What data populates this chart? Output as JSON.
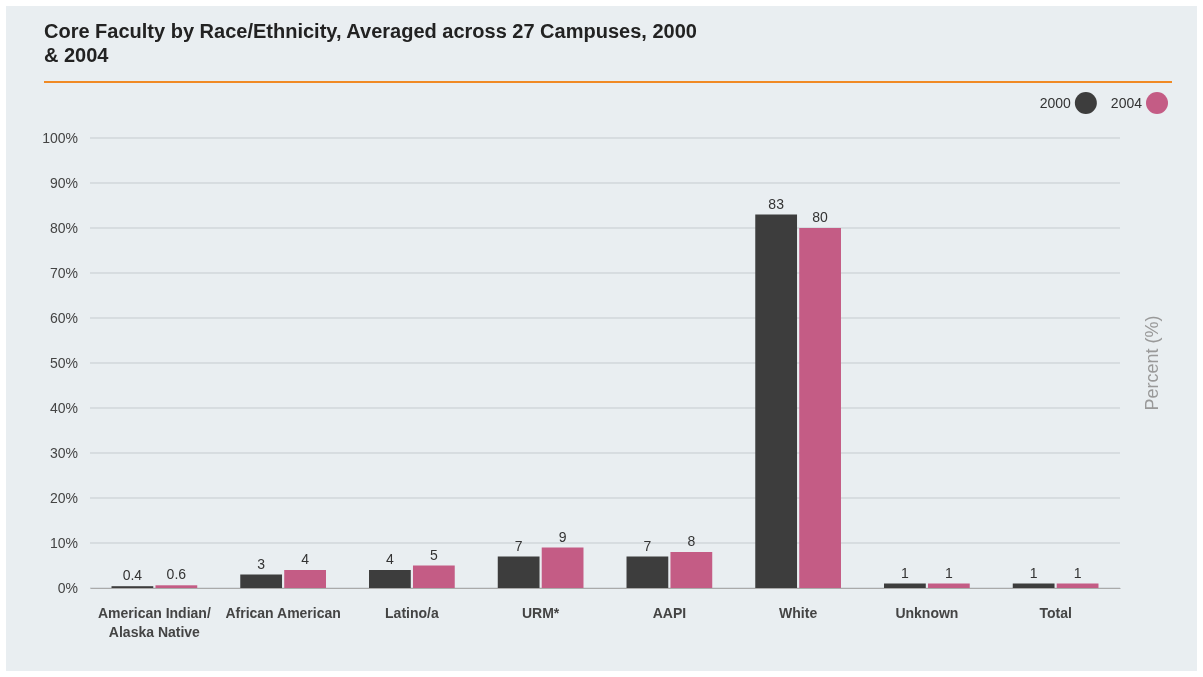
{
  "chart_data": {
    "type": "bar",
    "title": "Core Faculty by Race/Ethnicity, Averaged across 27 Campuses, 2000 & 2004",
    "ylabel": "Percent (%)",
    "categories": [
      "American Indian/ Alaska Native",
      "African American",
      "Latino/a",
      "URM*",
      "AAPI",
      "White",
      "Unknown",
      "Total"
    ],
    "series": [
      {
        "name": "2000",
        "color": "#3d3d3d",
        "values": [
          0.4,
          3,
          4,
          7,
          7,
          83,
          1,
          1
        ]
      },
      {
        "name": "2004",
        "color": "#c45c85",
        "values": [
          0.6,
          4,
          5,
          9,
          8,
          80,
          1,
          1
        ]
      }
    ],
    "ylim": [
      0,
      100
    ],
    "yticks": [
      {
        "value": 0,
        "label": "0%"
      },
      {
        "value": 10,
        "label": "10%"
      },
      {
        "value": 20,
        "label": "20%"
      },
      {
        "value": 30,
        "label": "30%"
      },
      {
        "value": 40,
        "label": "40%"
      },
      {
        "value": 50,
        "label": "50%"
      },
      {
        "value": 60,
        "label": "60%"
      },
      {
        "value": 70,
        "label": "70%"
      },
      {
        "value": 80,
        "label": "80%"
      },
      {
        "value": 90,
        "label": "90%"
      },
      {
        "value": 100,
        "label": "100%"
      }
    ],
    "grid": "y",
    "legend": "top right",
    "data_labels": true
  }
}
